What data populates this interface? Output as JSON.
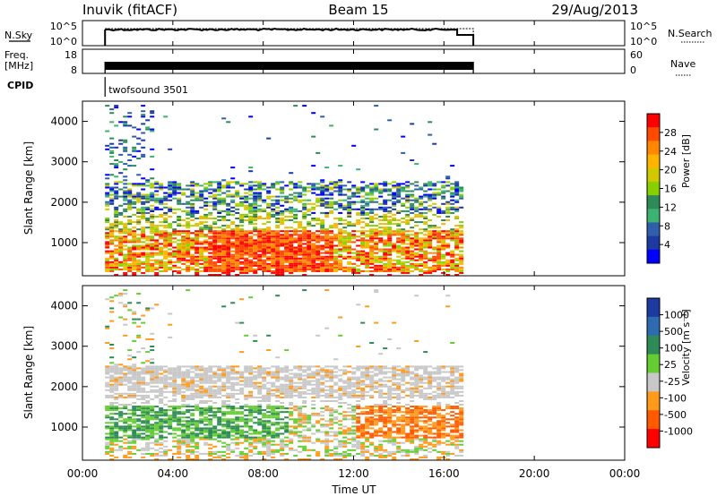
{
  "header": {
    "station": "Inuvik (fitACF)",
    "beam": "Beam 15",
    "date": "29/Aug/2013"
  },
  "nsky_panel": {
    "left_label": "N.Sky",
    "right_label": "N.Search",
    "left_ticks": [
      "10^5",
      "10^0"
    ],
    "right_ticks": [
      "10^5",
      "10^0"
    ]
  },
  "freq_panel": {
    "left_label_top": "Freq.",
    "left_label_unit": "[MHz]",
    "right_label": "Nave",
    "left_ticks": [
      "18",
      "8"
    ],
    "right_ticks": [
      "60",
      "0"
    ]
  },
  "cpid": {
    "label": "CPID",
    "program": "twofsound 3501"
  },
  "x_axis": {
    "label": "Time UT",
    "ticks": [
      "00:00",
      "04:00",
      "08:00",
      "12:00",
      "16:00",
      "20:00",
      "00:00"
    ],
    "range_hours": [
      0,
      24
    ],
    "data_start_hour": 1.0,
    "data_end_hour": 16.7,
    "search_end_hour": 17.3
  },
  "chart_data": [
    {
      "type": "heatmap",
      "title": "",
      "quantity": "Power",
      "colorbar_label": "Power [dB]",
      "colorbar_ticks": [
        "28",
        "24",
        "20",
        "16",
        "12",
        "8",
        "4"
      ],
      "colorbar_values": [
        28,
        24,
        20,
        16,
        12,
        8,
        4
      ],
      "colors": [
        "#ff0000",
        "#ff4a00",
        "#ff8800",
        "#ffb400",
        "#d2c800",
        "#88d000",
        "#2e8b57",
        "#3cb371",
        "#2f5faa",
        "#1c3aa0",
        "#0000ff"
      ],
      "xlabel": "Time UT",
      "ylabel": "Slant Range [km]",
      "ylim": [
        180,
        4500
      ],
      "y_ticks": [
        "1000",
        "2000",
        "3000",
        "4000"
      ],
      "regions": [
        {
          "hours": [
            1.2,
            16.7
          ],
          "range_km": [
            300,
            1400
          ],
          "level": "high",
          "desc": "strong echoes 20-28 dB"
        },
        {
          "hours": [
            1.2,
            16.7
          ],
          "range_km": [
            1400,
            2500
          ],
          "level": "mid",
          "desc": "moderate echoes 12-20 dB"
        },
        {
          "hours": [
            1.2,
            16.7
          ],
          "range_km": [
            2000,
            2400
          ],
          "level": "low",
          "desc": "weak echoes 4-12 dB"
        },
        {
          "hours": [
            1.2,
            8.0
          ],
          "range_km": [
            2500,
            4400
          ],
          "level": "sparse",
          "desc": "sparse low-power scatter"
        }
      ]
    },
    {
      "type": "heatmap",
      "title": "",
      "quantity": "Velocity",
      "colorbar_label": "Velocity [m s⁻¹]",
      "colorbar_ticks": [
        "1000",
        "500",
        "100",
        "25",
        "-25",
        "-100",
        "-500",
        "-1000"
      ],
      "colorbar_values": [
        1000,
        500,
        100,
        25,
        -25,
        -100,
        -500,
        -1000
      ],
      "colors": [
        "#1c3aa0",
        "#2e6bb0",
        "#2e8b57",
        "#66cc33",
        "#c8c8c8",
        "#ff9a1a",
        "#ff5a00",
        "#ff0000"
      ],
      "xlabel": "Time UT",
      "ylabel": "Slant Range [km]",
      "ylim": [
        180,
        4500
      ],
      "y_ticks": [
        "1000",
        "2000",
        "3000",
        "4000"
      ],
      "regions": [
        {
          "hours": [
            1.2,
            16.7
          ],
          "range_km": [
            1700,
            2500
          ],
          "level": "ground",
          "desc": "ground scatter near 0 m/s"
        },
        {
          "hours": [
            1.2,
            10.0
          ],
          "range_km": [
            700,
            1500
          ],
          "level": "positive",
          "desc": "green/positive velocities"
        },
        {
          "hours": [
            5.0,
            16.7
          ],
          "range_km": [
            600,
            1400
          ],
          "level": "negative",
          "desc": "orange/negative velocities"
        },
        {
          "hours": [
            1.2,
            8.0
          ],
          "range_km": [
            2500,
            4400
          ],
          "level": "sparse",
          "desc": "sparse scatter"
        }
      ]
    }
  ]
}
